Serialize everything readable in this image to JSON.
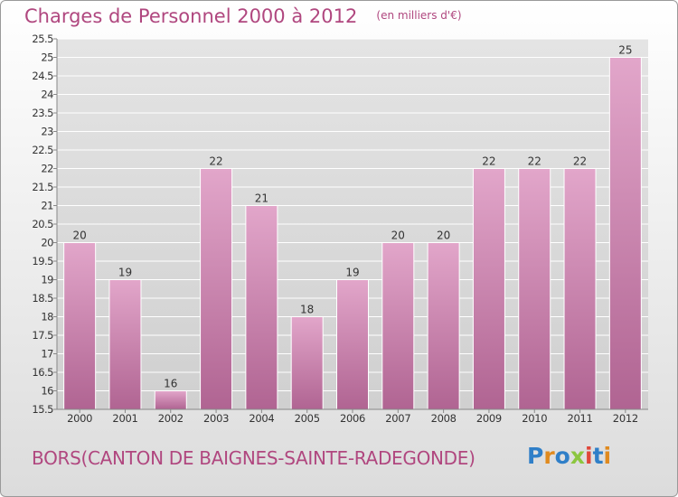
{
  "header": {
    "title": "Charges de Personnel 2000 à 2012",
    "subtitle": "(en milliers d'€)"
  },
  "footer": {
    "commune": "BORS(CANTON DE BAIGNES-SAINTE-RADEGONDE)",
    "brand": "Proxiti",
    "brand_letters": [
      {
        "ch": "P",
        "color": "#2f7fc8"
      },
      {
        "ch": "r",
        "color": "#e08a1e"
      },
      {
        "ch": "o",
        "color": "#2f7fc8"
      },
      {
        "ch": "x",
        "color": "#8cc63f"
      },
      {
        "ch": "i",
        "color": "#e0463a"
      },
      {
        "ch": "t",
        "color": "#2f7fc8"
      },
      {
        "ch": "i",
        "color": "#e08a1e"
      }
    ]
  },
  "chart_data": {
    "type": "bar",
    "title": "Charges de Personnel 2000 à 2012",
    "subtitle": "(en milliers d'€)",
    "categories": [
      "2000",
      "2001",
      "2002",
      "2003",
      "2004",
      "2005",
      "2006",
      "2007",
      "2008",
      "2009",
      "2010",
      "2011",
      "2012"
    ],
    "values": [
      20,
      19,
      16,
      22,
      21,
      18,
      19,
      20,
      20,
      22,
      22,
      22,
      25
    ],
    "data_labels": [
      "20",
      "19",
      "16",
      "22",
      "21",
      "18",
      "19",
      "20",
      "20",
      "22",
      "22",
      "22",
      "25"
    ],
    "ylim": [
      15.5,
      25.5
    ],
    "yticks": [
      15.5,
      16,
      16.5,
      17,
      17.5,
      18,
      18.5,
      19,
      19.5,
      20,
      20.5,
      21,
      21.5,
      22,
      22.5,
      23,
      23.5,
      24,
      24.5,
      25,
      25.5
    ],
    "ytick_labels": [
      "15.5",
      "16",
      "16.5",
      "17",
      "17.5",
      "18",
      "18.5",
      "19",
      "19.5",
      "20",
      "20.5",
      "21",
      "21.5",
      "22",
      "22.5",
      "23",
      "23.5",
      "24",
      "24.5",
      "25",
      "25.5"
    ],
    "grid": true,
    "colors": {
      "bar_top": "#e2a6ca",
      "bar_bottom": "#b06492",
      "bar_stroke": "#ffffff",
      "plot_bg_top": "#e4e4e4",
      "plot_bg_bottom": "#d0d0d0",
      "grid": "#ffffff",
      "axis_text": "#333333"
    }
  }
}
